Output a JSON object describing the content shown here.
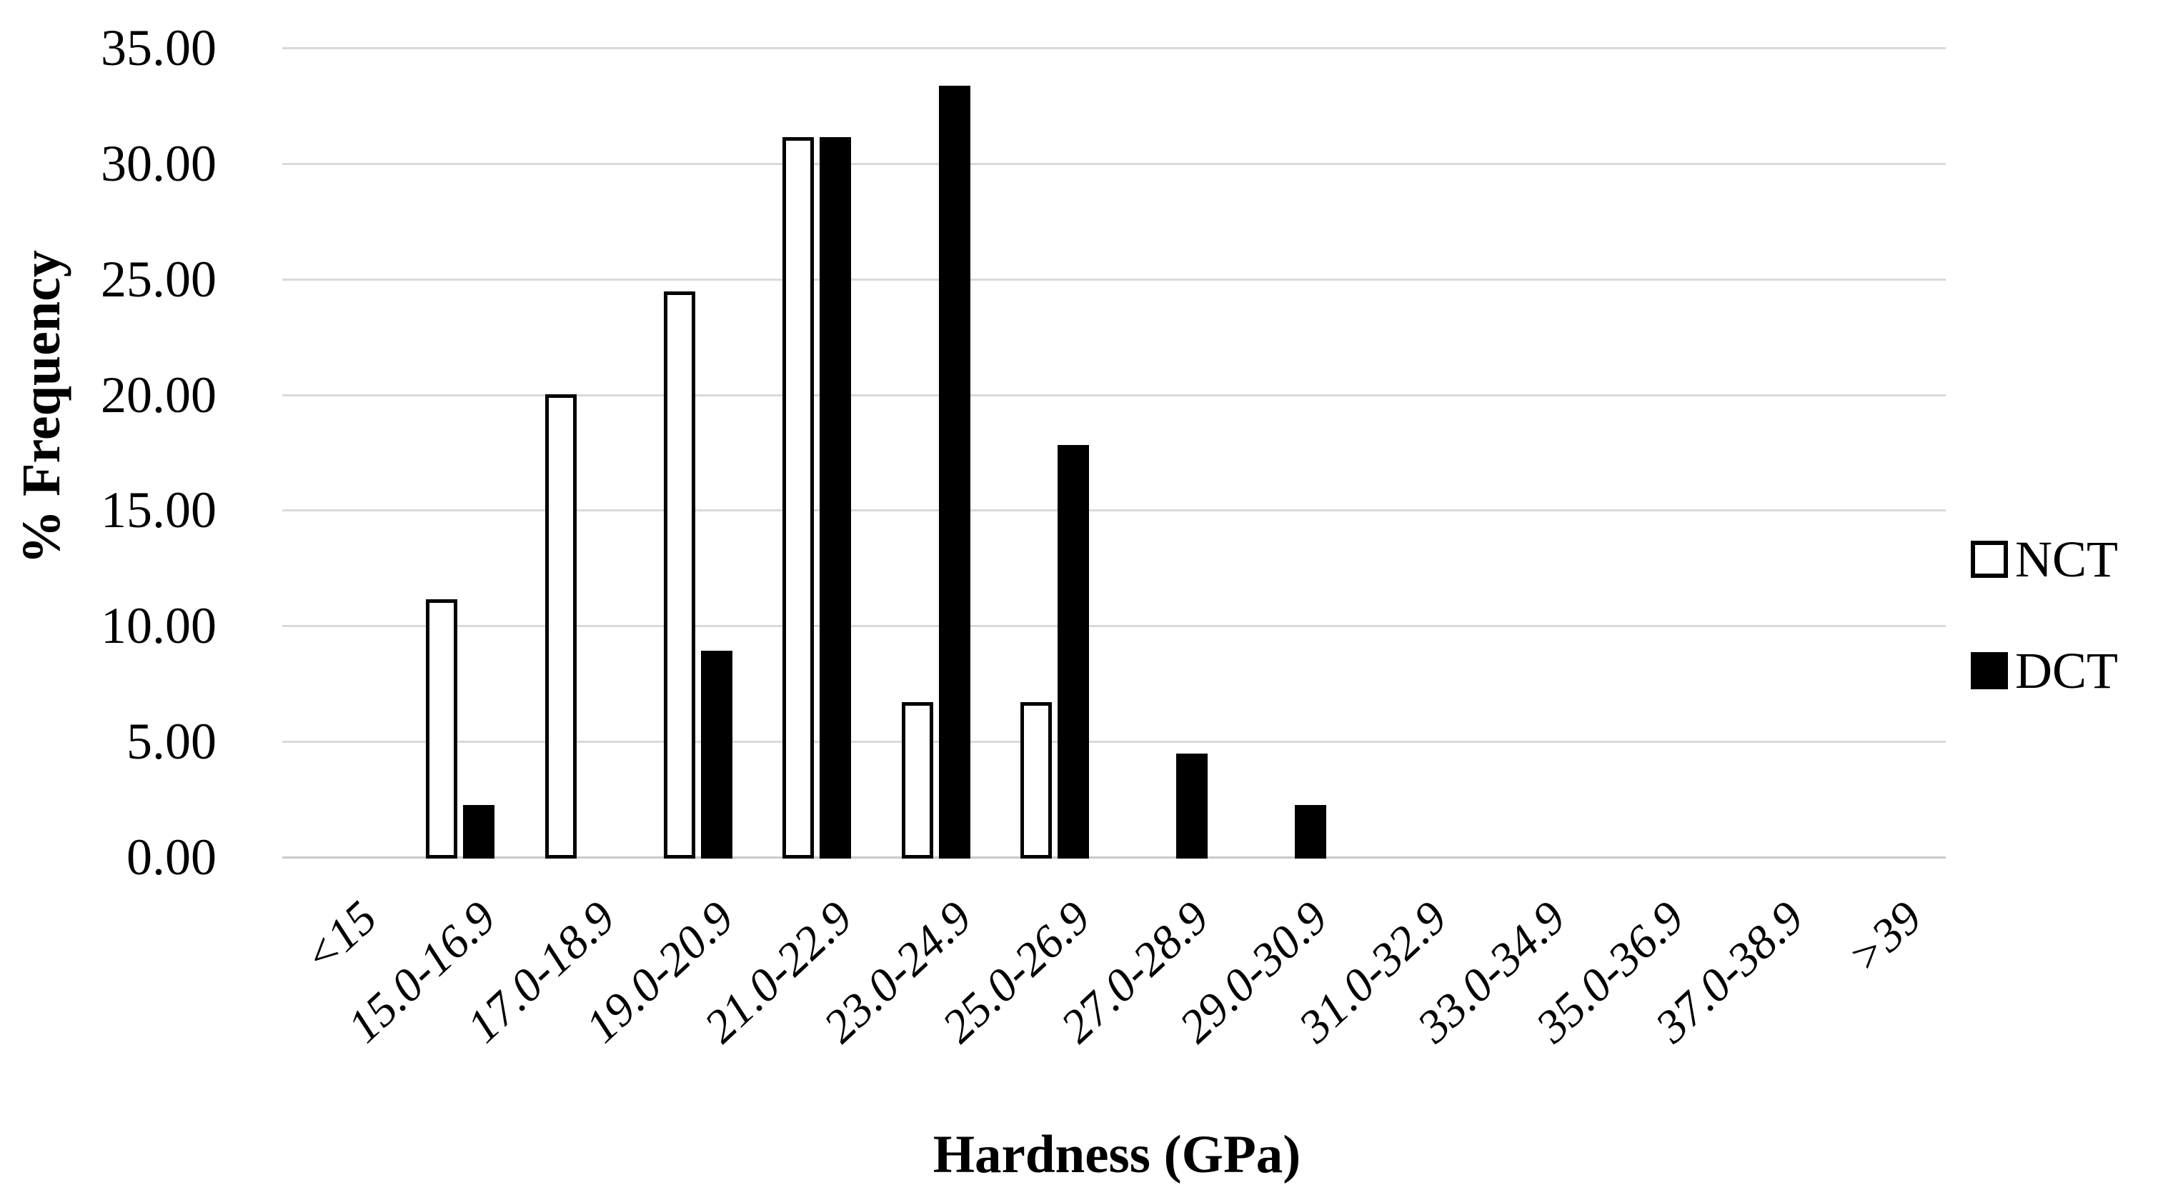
{
  "chart_data": {
    "type": "bar",
    "title": "",
    "xlabel": "Hardness (GPa)",
    "ylabel": "% Frequency",
    "categories": [
      "<15",
      "15.0-16.9",
      "17.0-18.9",
      "19.0-20.9",
      "21.0-22.9",
      "23.0-24.9",
      "25.0-26.9",
      "27.0-28.9",
      "29.0-30.9",
      "31.0-32.9",
      "33.0-34.9",
      "35.0-36.9",
      "37.0-38.9",
      ">39"
    ],
    "series": [
      {
        "name": "NCT",
        "fill": "#ffffff",
        "border": "#000000",
        "values": [
          0,
          11.11,
          20.0,
          24.44,
          31.11,
          6.67,
          6.67,
          0,
          0,
          0,
          0,
          0,
          0,
          0
        ]
      },
      {
        "name": "DCT",
        "fill": "#000000",
        "border": "#000000",
        "values": [
          0,
          2.22,
          0,
          8.89,
          31.11,
          33.33,
          17.78,
          4.44,
          2.22,
          0,
          0,
          0,
          0,
          0
        ]
      }
    ],
    "ylim": [
      0,
      35
    ],
    "ytick_step": 5,
    "ytick_labels": [
      "0.00",
      "5.00",
      "10.00",
      "15.00",
      "20.00",
      "25.00",
      "30.00",
      "35.00"
    ],
    "grid": true,
    "legend_position": "right"
  },
  "styles": {
    "background": "#ffffff",
    "grid_color": "#d9d9d9",
    "baseline_color": "#c9c9c9",
    "text_color": "#000000"
  }
}
